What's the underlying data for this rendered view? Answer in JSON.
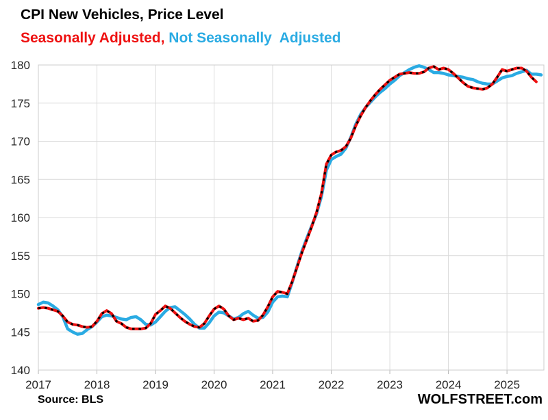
{
  "header": {
    "title": "CPI New Vehicles, Price Level",
    "legend_sa": "Seasonally Adjusted",
    "legend_separator": ", ",
    "legend_nsa": "Not Seasonally  Adjusted"
  },
  "footer": {
    "source": "Source: BLS",
    "watermark": "WOLFSTREET.com"
  },
  "colors": {
    "sa_line": "#ee1111",
    "sa_dots": "#000000",
    "nsa_line": "#2aabe3",
    "grid": "#d9d9d9",
    "border": "#cccccc",
    "tick": "#b3b3b3",
    "axis_text": "#262626"
  },
  "chart_data": {
    "type": "line",
    "title": "CPI New Vehicles, Price Level",
    "xlabel": "",
    "ylabel": "",
    "grid": true,
    "legend_position": "title-line-2",
    "ylim": [
      140,
      180
    ],
    "y_ticks": [
      140,
      145,
      150,
      155,
      160,
      165,
      170,
      175,
      180
    ],
    "x_ticks": [
      2017,
      2018,
      2019,
      2020,
      2021,
      2022,
      2023,
      2024,
      2025
    ],
    "x_axis_max": 2025.63,
    "x_start_year": 2017,
    "points_per_year": 12,
    "series": [
      {
        "name": "Seasonally Adjusted",
        "color_key": "sa_line",
        "style": "solid-with-black-dotted-overlay",
        "first_month": "2017-01",
        "last_month": "2025-07",
        "values": [
          148.1,
          148.2,
          148.1,
          147.9,
          147.7,
          147.1,
          146.3,
          146.0,
          145.9,
          145.7,
          145.6,
          145.7,
          146.4,
          147.4,
          147.8,
          147.4,
          146.4,
          146.1,
          145.6,
          145.4,
          145.4,
          145.4,
          145.5,
          146.1,
          147.3,
          147.8,
          148.4,
          148.1,
          147.5,
          146.9,
          146.4,
          146.0,
          145.7,
          145.6,
          146.1,
          147.1,
          148.0,
          148.4,
          148.0,
          147.1,
          146.6,
          146.8,
          146.6,
          146.8,
          146.4,
          146.5,
          147.2,
          148.3,
          149.6,
          150.3,
          150.2,
          150.0,
          151.6,
          153.5,
          155.4,
          157.1,
          158.8,
          160.7,
          163.2,
          167.0,
          168.2,
          168.6,
          168.8,
          169.3,
          170.4,
          172.0,
          173.3,
          174.4,
          175.3,
          176.1,
          176.8,
          177.4,
          178.0,
          178.4,
          178.8,
          178.9,
          179.0,
          178.9,
          178.9,
          179.1,
          179.6,
          179.8,
          179.4,
          179.6,
          179.4,
          178.9,
          178.3,
          177.7,
          177.2,
          177.0,
          176.9,
          176.8,
          177.0,
          177.5,
          178.4,
          179.4,
          179.2,
          179.4,
          179.6,
          179.6,
          179.2,
          178.4,
          177.8
        ]
      },
      {
        "name": "Not Seasonally Adjusted",
        "color_key": "nsa_line",
        "style": "solid",
        "first_month": "2017-01",
        "last_month": "2025-08",
        "values": [
          148.6,
          148.9,
          148.8,
          148.4,
          147.9,
          147.0,
          145.4,
          145.0,
          144.7,
          144.8,
          145.3,
          145.7,
          146.3,
          147.0,
          147.2,
          147.1,
          146.9,
          146.7,
          146.6,
          146.9,
          147.0,
          146.6,
          146.0,
          145.9,
          146.3,
          147.0,
          147.7,
          148.2,
          148.3,
          147.8,
          147.3,
          146.7,
          146.0,
          145.5,
          145.5,
          146.2,
          147.1,
          147.6,
          147.5,
          147.1,
          146.7,
          146.9,
          147.4,
          147.7,
          147.2,
          146.8,
          146.9,
          147.6,
          148.9,
          149.6,
          149.7,
          149.6,
          151.5,
          153.6,
          155.6,
          157.3,
          158.9,
          160.5,
          162.8,
          166.2,
          167.6,
          168.0,
          168.3,
          169.1,
          170.5,
          172.2,
          173.5,
          174.4,
          175.1,
          175.8,
          176.4,
          176.9,
          177.5,
          178.0,
          178.6,
          179.0,
          179.4,
          179.7,
          179.9,
          179.7,
          179.4,
          179.0,
          179.0,
          178.9,
          178.7,
          178.6,
          178.5,
          178.4,
          178.2,
          178.1,
          177.8,
          177.6,
          177.5,
          177.5,
          177.9,
          178.3,
          178.5,
          178.6,
          178.9,
          179.1,
          179.3,
          178.8,
          178.8,
          178.7
        ]
      }
    ]
  }
}
